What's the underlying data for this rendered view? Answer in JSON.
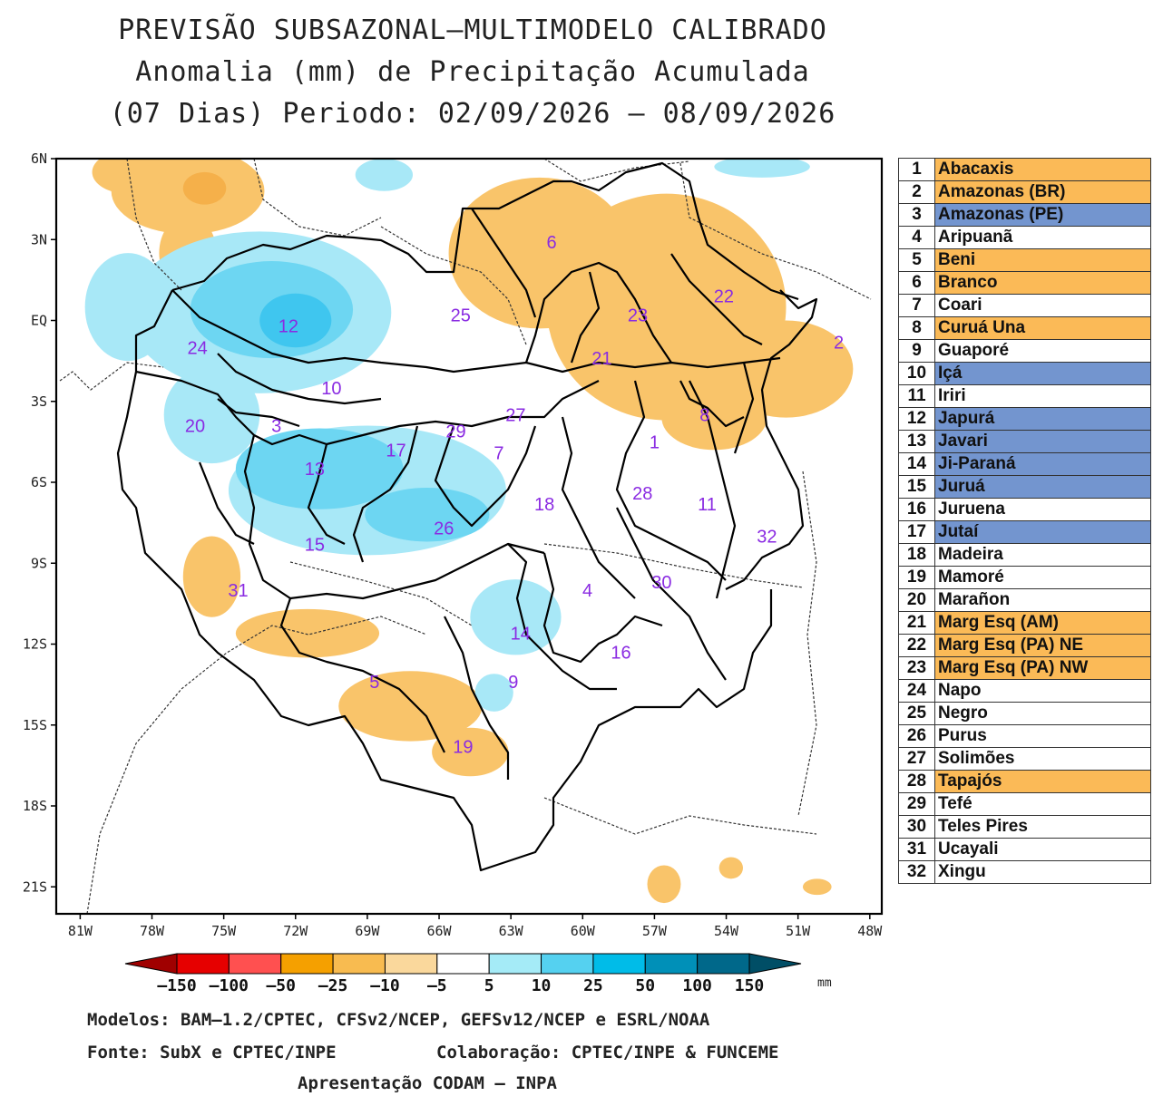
{
  "title": {
    "line1": "PREVISÃO SUBSAZONAL–MULTIMODELO CALIBRADO",
    "line2": "Anomalia (mm) de Precipitação Acumulada",
    "line3": "(07 Dias) Periodo: 02/09/2026 – 08/09/2026"
  },
  "map": {
    "lat_ticks": [
      "6N",
      "3N",
      "EQ",
      "3S",
      "6S",
      "9S",
      "12S",
      "15S",
      "18S",
      "21S"
    ],
    "lon_ticks": [
      "81W",
      "78W",
      "75W",
      "72W",
      "69W",
      "66W",
      "63W",
      "60W",
      "57W",
      "54W",
      "51W",
      "48W"
    ],
    "extent": {
      "lon": [
        -82,
        -47.5
      ],
      "lat": [
        -22,
        6
      ]
    },
    "basin_labels": [
      {
        "id": "1",
        "lon": -57.0,
        "lat": -4.5
      },
      {
        "id": "2",
        "lon": -49.3,
        "lat": -0.8
      },
      {
        "id": "3",
        "lon": -72.8,
        "lat": -3.9
      },
      {
        "id": "4",
        "lon": -59.8,
        "lat": -10.0
      },
      {
        "id": "5",
        "lon": -68.7,
        "lat": -13.4
      },
      {
        "id": "6",
        "lon": -61.3,
        "lat": 2.9
      },
      {
        "id": "7",
        "lon": -63.5,
        "lat": -4.9
      },
      {
        "id": "8",
        "lon": -54.9,
        "lat": -3.5
      },
      {
        "id": "9",
        "lon": -62.9,
        "lat": -13.4
      },
      {
        "id": "10",
        "lon": -70.5,
        "lat": -2.5
      },
      {
        "id": "11",
        "lon": -54.8,
        "lat": -6.8
      },
      {
        "id": "12",
        "lon": -72.3,
        "lat": -0.2
      },
      {
        "id": "13",
        "lon": -71.2,
        "lat": -5.5
      },
      {
        "id": "14",
        "lon": -62.6,
        "lat": -11.6
      },
      {
        "id": "15",
        "lon": -71.2,
        "lat": -8.3
      },
      {
        "id": "16",
        "lon": -58.4,
        "lat": -12.3
      },
      {
        "id": "17",
        "lon": -67.8,
        "lat": -4.8
      },
      {
        "id": "18",
        "lon": -61.6,
        "lat": -6.8
      },
      {
        "id": "19",
        "lon": -65.0,
        "lat": -15.8
      },
      {
        "id": "20",
        "lon": -76.2,
        "lat": -3.9
      },
      {
        "id": "21",
        "lon": -59.2,
        "lat": -1.4
      },
      {
        "id": "22",
        "lon": -54.1,
        "lat": 0.9
      },
      {
        "id": "23",
        "lon": -57.7,
        "lat": 0.2
      },
      {
        "id": "24",
        "lon": -76.1,
        "lat": -1.0
      },
      {
        "id": "25",
        "lon": -65.1,
        "lat": 0.2
      },
      {
        "id": "26",
        "lon": -65.8,
        "lat": -7.7
      },
      {
        "id": "27",
        "lon": -62.8,
        "lat": -3.5
      },
      {
        "id": "28",
        "lon": -57.5,
        "lat": -6.4
      },
      {
        "id": "29",
        "lon": -65.3,
        "lat": -4.1
      },
      {
        "id": "30",
        "lon": -56.7,
        "lat": -9.7
      },
      {
        "id": "31",
        "lon": -74.4,
        "lat": -10.0
      },
      {
        "id": "32",
        "lon": -52.3,
        "lat": -8.0
      }
    ],
    "anomaly_areas": [
      {
        "class": "-10",
        "lon": -76.5,
        "lat": 4.8,
        "rlon": 3.2,
        "rlat": 1.6
      },
      {
        "class": "-10",
        "lon": -79.0,
        "lat": 5.5,
        "rlon": 1.5,
        "rlat": 0.8
      },
      {
        "class": "-25",
        "lon": -75.8,
        "lat": 4.9,
        "rlon": 0.9,
        "rlat": 0.6
      },
      {
        "class": "-10",
        "lon": -76.5,
        "lat": 2.5,
        "rlon": 1.2,
        "rlat": 1.4
      },
      {
        "class": "-10",
        "lon": -61.8,
        "lat": 2.5,
        "rlon": 3.8,
        "rlat": 2.8
      },
      {
        "class": "-10",
        "lon": -56.5,
        "lat": 0.5,
        "rlon": 5.0,
        "rlat": 4.2
      },
      {
        "class": "-10",
        "lon": -51.5,
        "lat": -1.8,
        "rlon": 2.8,
        "rlat": 1.8
      },
      {
        "class": "-10",
        "lon": -54.5,
        "lat": -3.6,
        "rlon": 2.2,
        "rlat": 1.2
      },
      {
        "class": "-10",
        "lon": -75.5,
        "lat": -9.5,
        "rlon": 1.2,
        "rlat": 1.5
      },
      {
        "class": "-10",
        "lon": -71.5,
        "lat": -11.6,
        "rlon": 3.0,
        "rlat": 0.9
      },
      {
        "class": "-10",
        "lon": -67.2,
        "lat": -14.3,
        "rlon": 3.0,
        "rlat": 1.3
      },
      {
        "class": "-10",
        "lon": -64.7,
        "lat": -16.0,
        "rlon": 1.6,
        "rlat": 0.9
      },
      {
        "class": "-10",
        "lon": -56.6,
        "lat": -20.9,
        "rlon": 0.7,
        "rlat": 0.7
      },
      {
        "class": "-10",
        "lon": -53.8,
        "lat": -20.3,
        "rlon": 0.5,
        "rlat": 0.4
      },
      {
        "class": "-10",
        "lon": -50.2,
        "lat": -21.0,
        "rlon": 0.6,
        "rlat": 0.3
      },
      {
        "class": "5",
        "lon": -73.5,
        "lat": 0.3,
        "rlon": 5.5,
        "rlat": 3.0
      },
      {
        "class": "5",
        "lon": -75.5,
        "lat": -3.5,
        "rlon": 2.0,
        "rlat": 1.8
      },
      {
        "class": "5",
        "lon": -79.0,
        "lat": 0.5,
        "rlon": 1.8,
        "rlat": 2.0
      },
      {
        "class": "5",
        "lon": -69.0,
        "lat": -6.3,
        "rlon": 5.8,
        "rlat": 2.4
      },
      {
        "class": "5",
        "lon": -62.8,
        "lat": -11.0,
        "rlon": 1.9,
        "rlat": 1.4
      },
      {
        "class": "5",
        "lon": -63.7,
        "lat": -13.8,
        "rlon": 0.8,
        "rlat": 0.7
      },
      {
        "class": "5",
        "lon": -68.3,
        "lat": 5.4,
        "rlon": 1.2,
        "rlat": 0.6
      },
      {
        "class": "5",
        "lon": -52.5,
        "lat": 5.7,
        "rlon": 2.0,
        "rlat": 0.4
      },
      {
        "class": "10",
        "lon": -73.0,
        "lat": 0.4,
        "rlon": 3.4,
        "rlat": 1.8
      },
      {
        "class": "10",
        "lon": -71.0,
        "lat": -5.5,
        "rlon": 3.5,
        "rlat": 1.5
      },
      {
        "class": "10",
        "lon": -66.5,
        "lat": -7.2,
        "rlon": 2.6,
        "rlat": 1.0
      },
      {
        "class": "25",
        "lon": -72.0,
        "lat": 0.0,
        "rlon": 1.5,
        "rlat": 1.0
      }
    ],
    "colorbar": {
      "colors": [
        "#a00000",
        "#e60000",
        "#ff5050",
        "#f5a000",
        "#f8bb50",
        "#fad89c",
        "#ffffff",
        "#a5ebf7",
        "#55d1f0",
        "#00bce8",
        "#0090b8",
        "#00688a",
        "#004e66"
      ],
      "labels": [
        "–150",
        "–100",
        "–50",
        "–25",
        "–10",
        "–5",
        "5",
        "10",
        "25",
        "50",
        "100",
        "150"
      ],
      "unit": "mm"
    }
  },
  "legend": [
    {
      "num": "1",
      "name": "Abacaxis",
      "color": "#fbba57"
    },
    {
      "num": "2",
      "name": "Amazonas (BR)",
      "color": "#fbba57"
    },
    {
      "num": "3",
      "name": "Amazonas (PE)",
      "color": "#7395cf"
    },
    {
      "num": "4",
      "name": "Aripuanã",
      "color": "#ffffff"
    },
    {
      "num": "5",
      "name": "Beni",
      "color": "#fbba57"
    },
    {
      "num": "6",
      "name": "Branco",
      "color": "#fbba57"
    },
    {
      "num": "7",
      "name": "Coari",
      "color": "#ffffff"
    },
    {
      "num": "8",
      "name": "Curuá Una",
      "color": "#fbba57"
    },
    {
      "num": "9",
      "name": "Guaporé",
      "color": "#ffffff"
    },
    {
      "num": "10",
      "name": "Içá",
      "color": "#7395cf"
    },
    {
      "num": "11",
      "name": "Iriri",
      "color": "#ffffff"
    },
    {
      "num": "12",
      "name": "Japurá",
      "color": "#7395cf"
    },
    {
      "num": "13",
      "name": "Javari",
      "color": "#7395cf"
    },
    {
      "num": "14",
      "name": "Ji-Paraná",
      "color": "#7395cf"
    },
    {
      "num": "15",
      "name": "Juruá",
      "color": "#7395cf"
    },
    {
      "num": "16",
      "name": "Juruena",
      "color": "#ffffff"
    },
    {
      "num": "17",
      "name": "Jutaí",
      "color": "#7395cf"
    },
    {
      "num": "18",
      "name": "Madeira",
      "color": "#ffffff"
    },
    {
      "num": "19",
      "name": "Mamoré",
      "color": "#ffffff"
    },
    {
      "num": "20",
      "name": "Marañon",
      "color": "#ffffff"
    },
    {
      "num": "21",
      "name": "Marg Esq (AM)",
      "color": "#fbba57"
    },
    {
      "num": "22",
      "name": "Marg Esq (PA) NE",
      "color": "#fbba57"
    },
    {
      "num": "23",
      "name": "Marg Esq (PA) NW",
      "color": "#fbba57"
    },
    {
      "num": "24",
      "name": "Napo",
      "color": "#ffffff"
    },
    {
      "num": "25",
      "name": "Negro",
      "color": "#ffffff"
    },
    {
      "num": "26",
      "name": "Purus",
      "color": "#ffffff"
    },
    {
      "num": "27",
      "name": "Solimões",
      "color": "#ffffff"
    },
    {
      "num": "28",
      "name": "Tapajós",
      "color": "#fbba57"
    },
    {
      "num": "29",
      "name": "Tefé",
      "color": "#ffffff"
    },
    {
      "num": "30",
      "name": "Teles Pires",
      "color": "#ffffff"
    },
    {
      "num": "31",
      "name": "Ucayali",
      "color": "#ffffff"
    },
    {
      "num": "32",
      "name": "Xingu",
      "color": "#ffffff"
    }
  ],
  "footer": {
    "models": "Modelos: BAM–1.2/CPTEC, CFSv2/NCEP, GEFSv12/NCEP e ESRL/NOAA",
    "source": "Fonte: SubX e CPTEC/INPE",
    "collab": "Colaboração: CPTEC/INPE & FUNCEME",
    "presentation": "Apresentação CODAM – INPA"
  }
}
